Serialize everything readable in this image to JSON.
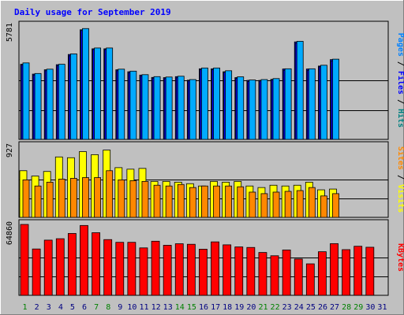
{
  "colors": {
    "background": "#c0c0c0",
    "title": "#0000ff",
    "pages": "#0080ff",
    "files": "#0000ff",
    "hits": "#008080",
    "visits": "#ffff00",
    "sites": "#ff8800",
    "kbytes": "#ff0000",
    "weekend_day": "#008000",
    "weekday": "#000080"
  },
  "chart_data": {
    "type": "bar",
    "title": "Daily usage for September 2019",
    "categories": [
      "1",
      "2",
      "3",
      "4",
      "5",
      "6",
      "7",
      "8",
      "9",
      "10",
      "11",
      "12",
      "13",
      "14",
      "15",
      "16",
      "17",
      "18",
      "19",
      "20",
      "21",
      "22",
      "23",
      "24",
      "25",
      "26",
      "27",
      "28",
      "29",
      "30",
      "31"
    ],
    "weekend_days": [
      "1",
      "7",
      "8",
      "14",
      "15",
      "21",
      "22",
      "28",
      "29"
    ],
    "panels": [
      {
        "key": "hits",
        "max_label": "5781",
        "ylim": [
          0,
          5781
        ],
        "legend": [
          "Pages",
          "Files",
          "Hits"
        ],
        "series": [
          {
            "name": "Pages",
            "values": [
              3900,
              3360,
              3580,
              3830,
              4360,
              5650,
              4660,
              4660,
              3580,
              3480,
              3300,
              3200,
              3180,
              3220,
              3050,
              3640,
              3640,
              3500,
              3190,
              3030,
              3050,
              3100,
              3600,
              5000,
              3600,
              3780,
              4090
            ]
          },
          {
            "name": "Files",
            "values": [
              3800,
              3280,
              3500,
              3750,
              4260,
              5550,
              4580,
              4580,
              3500,
              3400,
              3220,
              3120,
              3100,
              3140,
              2980,
              3560,
              3560,
              3420,
              3110,
              2950,
              2980,
              3030,
              3520,
              4900,
              3520,
              3700,
              4000
            ]
          },
          {
            "name": "Hits",
            "values": [
              3830,
              3330,
              3550,
              3810,
              4330,
              5590,
              4620,
              4620,
              3550,
              3450,
              3280,
              3160,
              3150,
              3200,
              3020,
              3600,
              3600,
              3450,
              3150,
              3010,
              3010,
              3060,
              3590,
              4970,
              3590,
              3740,
              4070
            ]
          }
        ]
      },
      {
        "key": "visits",
        "max_label": "927",
        "ylim": [
          0,
          927
        ],
        "legend": [
          "Sites",
          "Visits"
        ],
        "series": [
          {
            "name": "Visits",
            "values": [
              610,
              540,
              600,
              790,
              780,
              860,
              820,
              880,
              650,
              630,
              640,
              470,
              470,
              460,
              440,
              410,
              470,
              460,
              470,
              410,
              390,
              420,
              410,
              420,
              460,
              360,
              370
            ]
          },
          {
            "name": "Sites",
            "values": [
              490,
              410,
              460,
              500,
              510,
              520,
              520,
              610,
              490,
              480,
              470,
              420,
              410,
              430,
              390,
              410,
              410,
              410,
              400,
              330,
              310,
              330,
              340,
              350,
              390,
              280,
              310
            ]
          }
        ]
      },
      {
        "key": "kbytes",
        "max_label": "64860",
        "ylim": [
          0,
          64860
        ],
        "legend": [
          "KBytes"
        ],
        "series": [
          {
            "name": "KBytes",
            "values": [
              64860,
              42400,
              50500,
              51800,
              56600,
              63900,
              57300,
              51000,
              48500,
              48500,
              43400,
              49500,
              45800,
              47200,
              46700,
              42200,
              48900,
              46200,
              44300,
              43800,
              39200,
              36200,
              41500,
              33200,
              28800,
              39900,
              47300,
              41800,
              44900,
              44000
            ]
          }
        ]
      }
    ]
  }
}
